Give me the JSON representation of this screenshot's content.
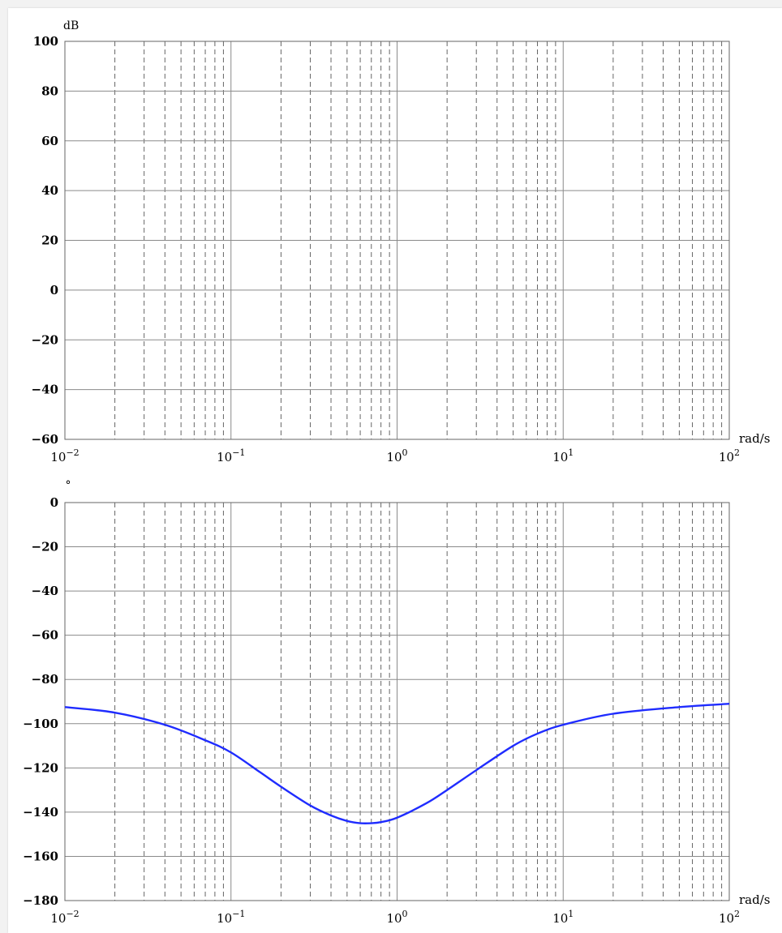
{
  "chart_data": [
    {
      "type": "line",
      "title": "",
      "xlabel": "rad/s",
      "ylabel": "dB",
      "xscale": "log",
      "xlim": [
        0.01,
        100
      ],
      "ylim": [
        -60,
        100
      ],
      "yticks": [
        -60,
        -40,
        -20,
        0,
        20,
        40,
        60,
        80,
        100
      ],
      "ytick_labels": [
        "−60",
        "−40",
        "−20",
        "0",
        "20",
        "40",
        "60",
        "80",
        "100"
      ],
      "xtick_labels": [
        {
          "base": "10",
          "exp": "−2"
        },
        {
          "base": "10",
          "exp": "−1"
        },
        {
          "base": "10",
          "exp": "0"
        },
        {
          "base": "10",
          "exp": "1"
        },
        {
          "base": "10",
          "exp": "2"
        }
      ],
      "grid": {
        "major": "solid",
        "minor": "dashed"
      },
      "series": []
    },
    {
      "type": "line",
      "title": "",
      "xlabel": "rad/s",
      "ylabel": "°",
      "xscale": "log",
      "xlim": [
        0.01,
        100
      ],
      "ylim": [
        -180,
        0
      ],
      "yticks": [
        -180,
        -160,
        -140,
        -120,
        -100,
        -80,
        -60,
        -40,
        -20,
        0
      ],
      "ytick_labels": [
        "−180",
        "−160",
        "−140",
        "−120",
        "−100",
        "−80",
        "−60",
        "−40",
        "−20",
        "0"
      ],
      "xtick_labels": [
        {
          "base": "10",
          "exp": "−2"
        },
        {
          "base": "10",
          "exp": "−1"
        },
        {
          "base": "10",
          "exp": "0"
        },
        {
          "base": "10",
          "exp": "1"
        },
        {
          "base": "10",
          "exp": "2"
        }
      ],
      "grid": {
        "major": "solid",
        "minor": "dashed"
      },
      "series": [
        {
          "color": "#1f2cff",
          "x": [
            0.01,
            0.02,
            0.04,
            0.07,
            0.1,
            0.15,
            0.2,
            0.3,
            0.4,
            0.5,
            0.6,
            0.7,
            0.8,
            1.0,
            1.5,
            2.0,
            3.0,
            5.0,
            7.0,
            10.0,
            20.0,
            50.0,
            100.0
          ],
          "y": [
            -92.5,
            -95,
            -100.5,
            -107.5,
            -113,
            -122,
            -128.5,
            -137,
            -141.5,
            -144,
            -145,
            -145,
            -144.5,
            -142.5,
            -136,
            -130,
            -121,
            -110,
            -104.5,
            -100.5,
            -95.5,
            -92.5,
            -91
          ]
        }
      ]
    }
  ]
}
